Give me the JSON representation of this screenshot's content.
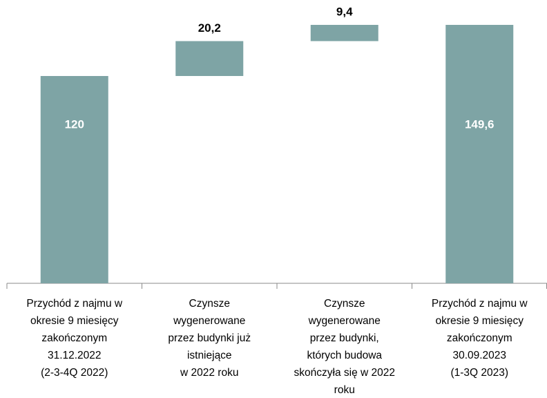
{
  "chart_data": {
    "type": "waterfall",
    "categories": [
      [
        "Przychód z najmu w",
        "okresie 9 miesięcy",
        "zakończonym",
        "31.12.2022",
        "(2-3-4Q 2022)"
      ],
      [
        "Czynsze",
        "wygenerowane",
        "przez budynki już",
        "istniejące",
        "w 2022 roku"
      ],
      [
        "Czynsze",
        "wygenerowane",
        "przez budynki,",
        "których budowa",
        "skończyła się w 2022",
        "roku"
      ],
      [
        "Przychód z najmu w",
        "okresie 9 miesięcy",
        "zakończonym",
        "30.09.2023",
        "(1-3Q 2023)"
      ]
    ],
    "measures": [
      "absolute",
      "relative",
      "relative",
      "total"
    ],
    "values": [
      120,
      20.2,
      9.4,
      149.6
    ],
    "value_labels": [
      "120",
      "20,2",
      "9,4",
      "149,6"
    ],
    "color": "#7ea4a5"
  }
}
